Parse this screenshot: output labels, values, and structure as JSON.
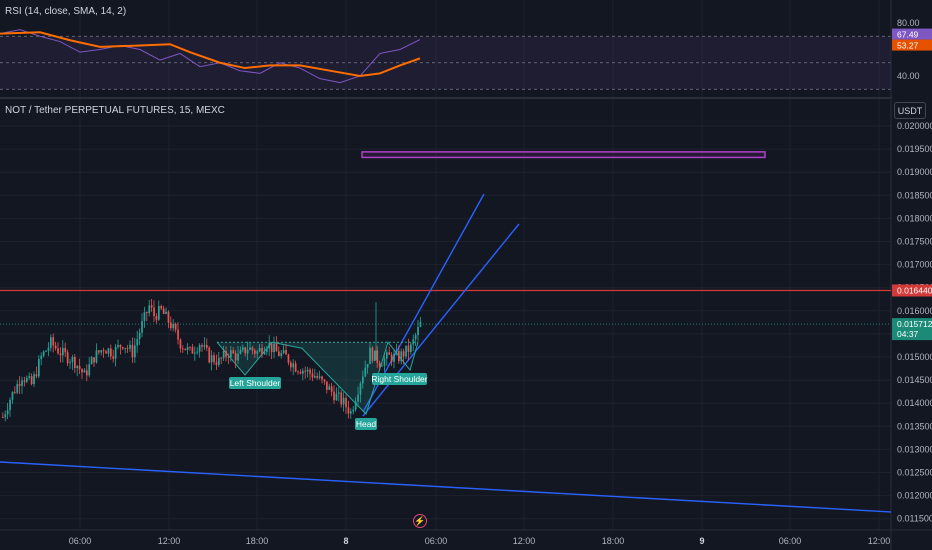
{
  "rsi_panel": {
    "title": "RSI (14, close, SMA, 14, 2)",
    "ticks": [
      "80.00",
      "40.00"
    ],
    "rsi_badge": "67.49",
    "ma_badge": "53.27"
  },
  "price_panel": {
    "title": "NOT / Tether PERPETUAL FUTURES, 15, MEXC",
    "currency": "USDT",
    "price_ticks": [
      "0.020000",
      "0.019500",
      "0.019000",
      "0.018500",
      "0.018000",
      "0.017500",
      "0.017000",
      "0.016500",
      "0.016000",
      "0.015500",
      "0.015000",
      "0.014500",
      "0.014000",
      "0.013500",
      "0.013000",
      "0.012500",
      "0.012000",
      "0.011500"
    ],
    "resistance_badge": "0.016440",
    "last_price_badge": "0.015712",
    "countdown": "04:37",
    "pattern_labels": [
      "Left Shoulder",
      "Head",
      "Right Shoulder"
    ],
    "time_labels": [
      "06:00",
      "12:00",
      "18:00",
      "8",
      "06:00",
      "12:00",
      "18:00",
      "9",
      "06:00",
      "12:00"
    ]
  },
  "chart_data": {
    "type": "candlestick",
    "symbol": "NOT / Tether PERPETUAL FUTURES",
    "interval": "15",
    "exchange": "MEXC",
    "ylim": [
      0.0114,
      0.0203
    ],
    "resistance_level": 0.01644,
    "last_price": 0.015712,
    "target_zone": [
      0.01932,
      0.01944
    ],
    "close_path_points": [
      [
        0,
        0.0137
      ],
      [
        3,
        0.0141
      ],
      [
        8,
        0.0146
      ],
      [
        12,
        0.0144
      ],
      [
        16,
        0.015
      ],
      [
        20,
        0.0153
      ],
      [
        24,
        0.0151
      ],
      [
        30,
        0.0149
      ],
      [
        34,
        0.0146
      ],
      [
        38,
        0.015
      ],
      [
        42,
        0.0152
      ],
      [
        46,
        0.0151
      ],
      [
        50,
        0.0153
      ],
      [
        54,
        0.0151
      ],
      [
        58,
        0.0157
      ],
      [
        61,
        0.0161
      ],
      [
        63,
        0.0159
      ],
      [
        66,
        0.016
      ],
      [
        70,
        0.0157
      ],
      [
        74,
        0.0153
      ],
      [
        78,
        0.0151
      ],
      [
        82,
        0.0153
      ],
      [
        86,
        0.015
      ],
      [
        90,
        0.0149
      ],
      [
        94,
        0.0151
      ],
      [
        98,
        0.015
      ],
      [
        102,
        0.0152
      ],
      [
        106,
        0.0151
      ],
      [
        110,
        0.0153
      ],
      [
        114,
        0.0151
      ],
      [
        118,
        0.015
      ],
      [
        122,
        0.0148
      ],
      [
        126,
        0.0147
      ],
      [
        130,
        0.0146
      ],
      [
        134,
        0.0144
      ],
      [
        138,
        0.0142
      ],
      [
        142,
        0.014
      ],
      [
        145,
        0.0138
      ],
      [
        149,
        0.0145
      ],
      [
        153,
        0.0151
      ],
      [
        157,
        0.0149
      ],
      [
        161,
        0.015
      ],
      [
        165,
        0.015
      ],
      [
        170,
        0.0152
      ],
      [
        174,
        0.01571
      ]
    ],
    "candle_count": 175,
    "neckline": 0.01532,
    "rsi_ticks": [
      80,
      40
    ],
    "rsi_last": 67.49,
    "rsi_ma_last": 53.27
  }
}
